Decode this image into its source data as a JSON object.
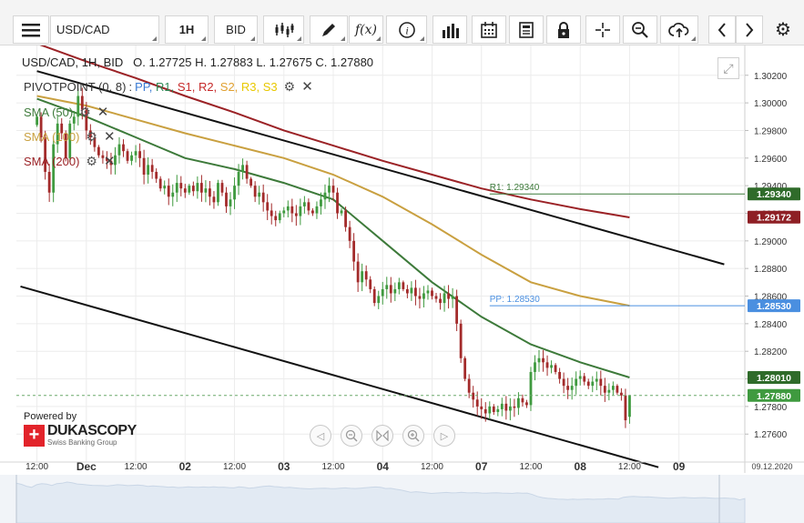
{
  "toolbar": {
    "symbol": "USD/CAD",
    "timeframe": "1H",
    "price_side": "BID",
    "icons": [
      "menu-icon",
      "candlestick-icon",
      "pencil-icon",
      "function-icon",
      "info-icon",
      "volume-bars-icon",
      "calendar-icon",
      "document-icon",
      "lock-icon",
      "crosshair-icon",
      "zoom-icon",
      "cloud-upload-icon",
      "chevron-left-icon",
      "chevron-right-icon",
      "gear-icon"
    ]
  },
  "header": {
    "instrument": "USD/CAD, 1H, BID",
    "open_label": "O.",
    "open": "1.27725",
    "high_label": "H.",
    "high": "1.27883",
    "low_label": "L.",
    "low": "1.27675",
    "close_label": "C.",
    "close": "1.27880"
  },
  "legend": {
    "pivot": {
      "name": "PIVOTPOINT (0, 8)",
      "sep": ":",
      "items": [
        {
          "label": "PP,",
          "color": "#3a7bd5"
        },
        {
          "label": "R1,",
          "color": "#2e8b57"
        },
        {
          "label": "S1,",
          "color": "#c62828"
        },
        {
          "label": "R2,",
          "color": "#c62828"
        },
        {
          "label": "S2,",
          "color": "#e0a030"
        },
        {
          "label": "R3,",
          "color": "#e8c800"
        },
        {
          "label": "S3",
          "color": "#e8c800"
        }
      ]
    },
    "sma50": {
      "label": "SMA (50)",
      "color": "#3d7a3a"
    },
    "sma100": {
      "label": "SMA (100)",
      "color": "#c9a040"
    },
    "sma200": {
      "label": "SMA (200)",
      "color": "#9b2226"
    }
  },
  "branding": {
    "powered_by": "Powered by",
    "logo_mark": "+",
    "logo_name": "DUKASCOPY",
    "logo_sub": "Swiss Banking Group"
  },
  "nav": [
    "◁",
    "🔍-",
    "▷|◁",
    "🔍+",
    "▷"
  ],
  "colors": {
    "up": "#3f9a3f",
    "down": "#a32b2b",
    "r1": "#3d7a3a",
    "pp": "#4a8fe0",
    "channel": "#111111",
    "grid": "#ececec"
  },
  "chart_data": {
    "type": "candlestick",
    "symbol": "USD/CAD",
    "interval": "1H",
    "ylim": [
      1.2745,
      1.3035
    ],
    "y_ticks": [
      1.302,
      1.3,
      1.298,
      1.296,
      1.294,
      1.292,
      1.29,
      1.288,
      1.286,
      1.284,
      1.282,
      1.28,
      1.278,
      1.276
    ],
    "y_tick_labels": [
      "1.30200",
      "1.30000",
      "1.29800",
      "1.29600",
      "1.29400",
      "1.29200",
      "1.29000",
      "1.28800",
      "1.28600",
      "1.28400",
      "1.28200",
      "1.28000",
      "1.27800",
      "1.27600"
    ],
    "x_ticks": [
      {
        "t": 0,
        "label": "12:00"
      },
      {
        "t": 12,
        "label": "Dec",
        "bold": true
      },
      {
        "t": 24,
        "label": "12:00"
      },
      {
        "t": 36,
        "label": "02",
        "bold": true
      },
      {
        "t": 48,
        "label": "12:00"
      },
      {
        "t": 60,
        "label": "03",
        "bold": true
      },
      {
        "t": 72,
        "label": "12:00"
      },
      {
        "t": 84,
        "label": "04",
        "bold": true
      },
      {
        "t": 96,
        "label": "12:00"
      },
      {
        "t": 108,
        "label": "07",
        "bold": true
      },
      {
        "t": 120,
        "label": "12:00"
      },
      {
        "t": 132,
        "label": "08",
        "bold": true
      },
      {
        "t": 144,
        "label": "12:00"
      },
      {
        "t": 156,
        "label": "09",
        "bold": true
      }
    ],
    "x_range": [
      -5,
      172
    ],
    "date_footer": "09.12.2020",
    "close_series": [
      1.299,
      1.2975,
      1.295,
      1.2935,
      1.297,
      1.2985,
      1.2978,
      1.296,
      1.2985,
      1.299,
      1.3005,
      1.2995,
      1.298,
      1.2975,
      1.2968,
      1.2962,
      1.296,
      1.2958,
      1.2955,
      1.2962,
      1.297,
      1.2965,
      1.2958,
      1.2962,
      1.2965,
      1.296,
      1.2948,
      1.2955,
      1.295,
      1.2945,
      1.2938,
      1.294,
      1.2932,
      1.2935,
      1.2942,
      1.2938,
      1.2935,
      1.294,
      1.2936,
      1.2942,
      1.2935,
      1.2938,
      1.2932,
      1.2928,
      1.2942,
      1.2935,
      1.2925,
      1.293,
      1.294,
      1.295,
      1.2955,
      1.2945,
      1.294,
      1.2932,
      1.2935,
      1.2928,
      1.2922,
      1.2918,
      1.2915,
      1.292,
      1.2922,
      1.2925,
      1.292,
      1.2918,
      1.2925,
      1.2928,
      1.2922,
      1.292,
      1.2925,
      1.293,
      1.2935,
      1.294,
      1.2935,
      1.292,
      1.2922,
      1.291,
      1.29,
      1.2885,
      1.287,
      1.2878,
      1.2872,
      1.2865,
      1.2855,
      1.286,
      1.2865,
      1.2868,
      1.2862,
      1.2865,
      1.287,
      1.2865,
      1.2862,
      1.2866,
      1.286,
      1.2858,
      1.2862,
      1.2864,
      1.286,
      1.2858,
      1.2855,
      1.2862,
      1.2858,
      1.286,
      1.284,
      1.2815,
      1.28,
      1.279,
      1.2785,
      1.278,
      1.2778,
      1.2775,
      1.278,
      1.2776,
      1.2778,
      1.2782,
      1.2777,
      1.278,
      1.2779,
      1.2786,
      1.2783,
      1.2781,
      1.2805,
      1.2812,
      1.2815,
      1.2812,
      1.2808,
      1.281,
      1.2805,
      1.28,
      1.2795,
      1.2792,
      1.2795,
      1.28,
      1.2802,
      1.2798,
      1.2795,
      1.2798,
      1.28,
      1.2795,
      1.279,
      1.2792,
      1.2795,
      1.279,
      1.2788,
      1.277,
      1.2788
    ],
    "last_candle": {
      "open": 1.27725,
      "high": 1.27883,
      "low": 1.27675,
      "close": 1.2788
    },
    "sma50": {
      "t": [
        0,
        12,
        24,
        36,
        48,
        60,
        72,
        84,
        96,
        108,
        120,
        132,
        144
      ],
      "v": [
        1.3003,
        1.299,
        1.2975,
        1.296,
        1.2952,
        1.2942,
        1.293,
        1.29,
        1.287,
        1.2845,
        1.2825,
        1.2812,
        1.2801
      ]
    },
    "sma100": {
      "t": [
        0,
        12,
        24,
        36,
        48,
        60,
        72,
        84,
        96,
        108,
        120,
        132,
        144
      ],
      "v": [
        1.3005,
        1.2998,
        1.2988,
        1.2978,
        1.2969,
        1.296,
        1.2948,
        1.2932,
        1.2912,
        1.289,
        1.287,
        1.286,
        1.2853
      ]
    },
    "sma200": {
      "t": [
        0,
        12,
        24,
        36,
        48,
        60,
        72,
        84,
        96,
        108,
        120,
        132,
        144
      ],
      "v": [
        1.3043,
        1.303,
        1.3018,
        1.3005,
        1.2993,
        1.298,
        1.2969,
        1.2958,
        1.2948,
        1.2938,
        1.293,
        1.2923,
        1.2917
      ]
    },
    "channel_upper": {
      "t": [
        0,
        167
      ],
      "v": [
        1.3023,
        1.2883
      ]
    },
    "channel_lower": {
      "t": [
        -4,
        151
      ],
      "v": [
        1.2867,
        1.2736
      ]
    },
    "levels": [
      {
        "name": "R1",
        "label": "R1: 1.29340",
        "value": 1.2934,
        "t_start": 110,
        "axis_label": "1.29340",
        "color": "#3d7a3a"
      },
      {
        "name": "PP",
        "label": "PP: 1.28530",
        "value": 1.2853,
        "t_start": 110,
        "axis_label": "1.28530",
        "color": "#4a8fe0"
      }
    ],
    "axis_badges": [
      {
        "value": 1.2934,
        "label": "1.29340",
        "bg": "#2f6b2a"
      },
      {
        "value": 1.29172,
        "label": "1.29172",
        "bg": "#8e1f24"
      },
      {
        "value": 1.2853,
        "label": "1.28530",
        "bg": "#4a8fe0"
      },
      {
        "value": 1.2801,
        "label": "1.28010",
        "bg": "#2f6b2a"
      },
      {
        "value": 1.2788,
        "label": "1.27880",
        "bg": "#3f9a3f"
      }
    ],
    "current_price": 1.2788
  }
}
